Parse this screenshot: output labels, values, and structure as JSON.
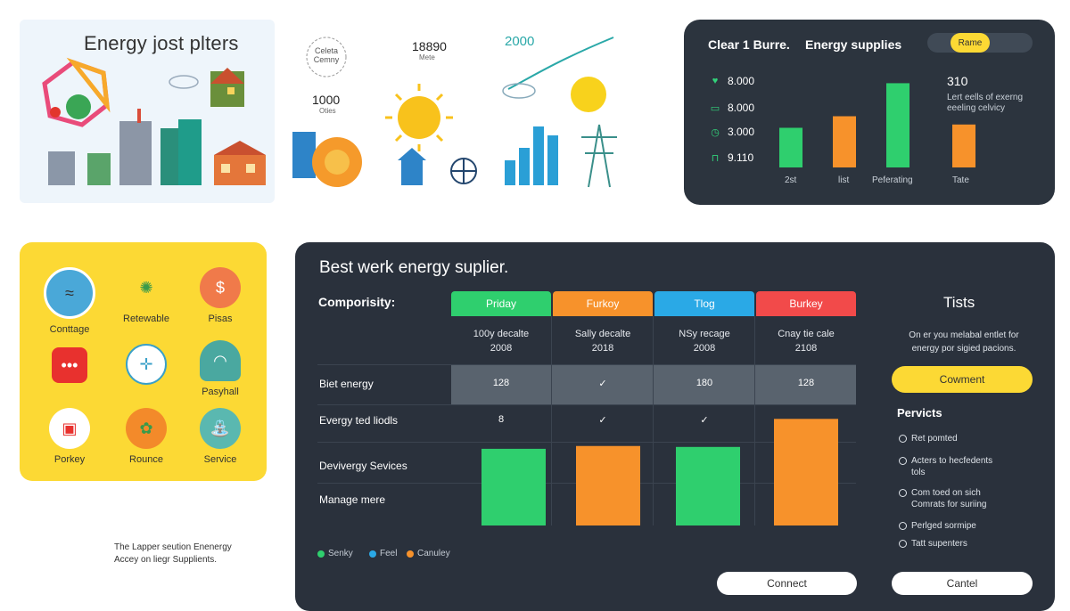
{
  "illustration": {
    "title": "Energy jost plters",
    "labels": {
      "circle_label": "Celeta Cemny",
      "num1": "18890",
      "num1_sub": "Mete",
      "num2": "1000",
      "num2_sub": "Oties",
      "year": "2000"
    }
  },
  "stats_card": {
    "title1": "Clear 1 Burre.",
    "title2": "Energy supplies",
    "toggle": [
      "",
      "Rame",
      "",
      ""
    ],
    "rows": [
      {
        "icon": "heart-icon",
        "value": "8.000"
      },
      {
        "icon": "card-icon",
        "value": "8.000"
      },
      {
        "icon": "clock-icon",
        "value": "3.000"
      },
      {
        "icon": "lock-icon",
        "value": "9.110"
      }
    ],
    "note_value": "310",
    "note_text": "Lert eells of exerng eeeling celvicy",
    "chart_data": {
      "type": "bar",
      "categories": [
        "2st",
        "list",
        "Peferating",
        "Tate"
      ],
      "values": [
        48,
        62,
        102,
        52
      ],
      "colors": [
        "#2fcf6e",
        "#f7922b",
        "#2fcf6e",
        "#f7922b"
      ]
    }
  },
  "yellow_card": {
    "items": [
      {
        "label": "Conttage",
        "icon": "water-globe-icon"
      },
      {
        "label": "Retewable",
        "icon": "network-nodes-icon"
      },
      {
        "label": "Pisas",
        "icon": "coin-gear-icon"
      },
      {
        "label": "",
        "icon": "red-hexagon-icon"
      },
      {
        "label": "",
        "icon": "compass-icon"
      },
      {
        "label": "Pasyhall",
        "icon": "dome-icon"
      },
      {
        "label": "Porkey",
        "icon": "truck-icon"
      },
      {
        "label": "Rounce",
        "icon": "fruit-icon"
      },
      {
        "label": "Service",
        "icon": "fountain-icon"
      }
    ]
  },
  "footnote": {
    "line1": "The Lapper seution Enenergy",
    "line2": "Accey on liegr Supplients."
  },
  "main": {
    "title": "Best werk energy suplier.",
    "comp_label": "Comporisity:",
    "columns": [
      {
        "name": "Priday",
        "color": "#2fcf6e",
        "sub1": "100y decalte",
        "sub2": "2008"
      },
      {
        "name": "Furkoy",
        "color": "#f7922b",
        "sub1": "Sally decalte",
        "sub2": "2018"
      },
      {
        "name": "Tlog",
        "color": "#2aa9e6",
        "sub1": "NSy recage",
        "sub2": "2008"
      },
      {
        "name": "Burkey",
        "color": "#f24a4a",
        "sub1": "Cnay tie cale",
        "sub2": "2108"
      }
    ],
    "rows": [
      {
        "label": "Biet energy",
        "cells": [
          "128",
          "✓",
          "180",
          "128"
        ]
      },
      {
        "label": "Evergy ted liodls",
        "cells": [
          "8",
          "✓",
          "✓",
          ""
        ]
      },
      {
        "label": "Devivergy Sevices",
        "cells": [
          "",
          "",
          "",
          ""
        ]
      },
      {
        "label": "Manage mere",
        "cells": [
          "",
          "",
          "",
          ""
        ]
      }
    ],
    "chart_data": {
      "type": "bar",
      "categories": [
        "Priday",
        "Furkoy",
        "Tlog",
        "Burkey"
      ],
      "values": [
        82,
        85,
        84,
        114
      ],
      "colors": [
        "#2fcf6e",
        "#f7922b",
        "#2fcf6e",
        "#f7922b"
      ]
    },
    "legend": [
      {
        "label": "Senky",
        "color": "#2fcf6e"
      },
      {
        "label": "Feel",
        "color": "#2aa9e6"
      },
      {
        "label": "Canuley",
        "color": "#f7922b"
      }
    ],
    "connect_label": "Connect"
  },
  "side": {
    "title": "Tists",
    "desc": "On er you melabal entlet for energy por sigied pacions.",
    "comment_label": "Cowment",
    "pervicts_title": "Pervicts",
    "items": [
      "Ret pomted",
      "Acters to hecfedents tols",
      "Com toed on sich Comrats for suriing",
      "Perlged sormipe",
      "Tatt supenters"
    ],
    "cancel_label": "Cantel"
  }
}
